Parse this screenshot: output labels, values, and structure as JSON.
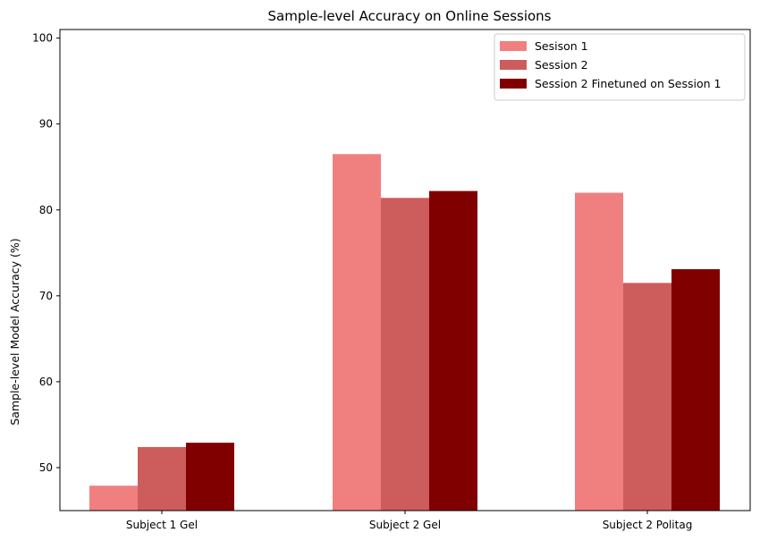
{
  "chart_data": {
    "type": "bar",
    "title": "Sample-level Accuracy on Online Sessions",
    "xlabel": "",
    "ylabel": "Sample-level Model Accuracy (%)",
    "categories": [
      "Subject 1 Gel",
      "Subject 2 Gel",
      "Subject 2 Politag"
    ],
    "series": [
      {
        "name": "Sesison 1",
        "color": "#f08080",
        "values": [
          47.9,
          86.5,
          82.0
        ]
      },
      {
        "name": "Session 2",
        "color": "#cd5c5c",
        "values": [
          52.4,
          81.4,
          71.5
        ]
      },
      {
        "name": "Session 2 Finetuned on Session 1",
        "color": "#800000",
        "values": [
          52.9,
          82.2,
          73.1
        ]
      }
    ],
    "ylim": [
      45,
      101
    ],
    "yticks": [
      50,
      60,
      70,
      80,
      90,
      100
    ],
    "grid": false,
    "legend_position": "top-right"
  }
}
